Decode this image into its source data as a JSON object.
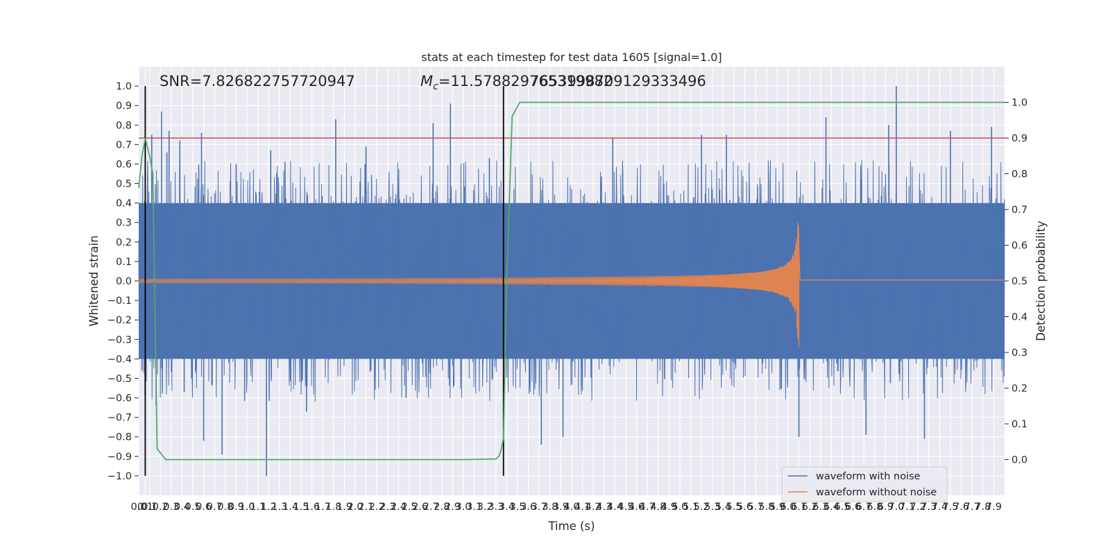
{
  "chart_data": {
    "type": "line",
    "title": "stats at each timestep for test data 1605 [signal=1.0]",
    "xlabel": "Time (s)",
    "ylabel_left": "Whitened strain",
    "ylabel_right": "Detection probability",
    "xlim": [
      0.0,
      8.0
    ],
    "ylim_left": [
      -1.1,
      1.1
    ],
    "ylim_right": [
      -0.1,
      1.1
    ],
    "x_ticks": [
      "0.0",
      "0.1",
      "0.1",
      "0.2",
      "0.3",
      "0.4",
      "0.5",
      "0.6",
      "0.7",
      "0.8",
      "0.9",
      "1.0",
      "1.1",
      "1.2",
      "1.3",
      "1.4",
      "1.5",
      "1.6",
      "1.7",
      "1.8",
      "1.9",
      "2.0",
      "2.1",
      "2.2",
      "2.3",
      "2.4",
      "2.5",
      "2.6",
      "2.7",
      "2.8",
      "2.9",
      "3.0",
      "3.1",
      "3.2",
      "3.3",
      "3.4",
      "3.5",
      "3.6",
      "3.7",
      "3.8",
      "3.9",
      "4.0",
      "4.1",
      "4.2",
      "4.3",
      "4.4",
      "4.5",
      "4.6",
      "4.7",
      "4.8",
      "4.9",
      "5.0",
      "5.1",
      "5.2",
      "5.3",
      "5.4",
      "5.5",
      "5.6",
      "5.7",
      "5.8",
      "5.9",
      "6.0",
      "6.1",
      "6.2",
      "6.3",
      "6.4",
      "6.5",
      "6.6",
      "6.7",
      "6.8",
      "6.9",
      "7.0",
      "7.1",
      "7.2",
      "7.3",
      "7.4",
      "7.5",
      "7.6",
      "7.7",
      "7.8",
      "7.9"
    ],
    "y_ticks_left": [
      "1.0",
      "0.9",
      "0.8",
      "0.7",
      "0.6",
      "0.5",
      "0.4",
      "0.3",
      "0.2",
      "0.1",
      "0.0",
      "−0.1",
      "−0.2",
      "−0.3",
      "−0.4",
      "−0.5",
      "−0.6",
      "−0.7",
      "−0.8",
      "−0.9",
      "−1.0"
    ],
    "y_ticks_right": [
      "1.0",
      "0.9",
      "0.8",
      "0.7",
      "0.6",
      "0.5",
      "0.4",
      "0.3",
      "0.2",
      "0.1",
      "0.0"
    ],
    "annotations": {
      "snr": "SNR=7.826822757720947",
      "mc_symbol": "M",
      "mc_sub": "c",
      "mc_value": "=11.578829765319982",
      "mc_overlap": "7653998709129333496"
    },
    "threshold_probability": 0.9,
    "vertical_markers_x": [
      0.06,
      3.37
    ],
    "grid": true,
    "legend_position": "lower right",
    "series": [
      {
        "name": "waveform with noise",
        "color": "#4c72b0",
        "description_kind": "noisy whitened strain, amplitude mostly within ±0.4 with spikes to ±1.0",
        "band_amplitude": 0.4,
        "spikes": [
          [
            0.03,
            -0.46
          ],
          [
            0.12,
            0.75
          ],
          [
            0.16,
            -0.64
          ],
          [
            0.21,
            0.87
          ],
          [
            0.26,
            0.66
          ],
          [
            0.28,
            0.77
          ],
          [
            0.38,
            0.72
          ],
          [
            0.42,
            -0.57
          ],
          [
            0.58,
            0.76
          ],
          [
            0.6,
            -0.82
          ],
          [
            0.77,
            -0.89
          ],
          [
            0.9,
            0.6
          ],
          [
            1.18,
            -1.0
          ],
          [
            1.22,
            0.67
          ],
          [
            1.55,
            -0.67
          ],
          [
            1.82,
            0.83
          ],
          [
            2.1,
            0.69
          ],
          [
            2.47,
            -0.6
          ],
          [
            2.72,
            0.81
          ],
          [
            2.88,
            0.91
          ],
          [
            3.24,
            0.63
          ],
          [
            3.72,
            -0.84
          ],
          [
            3.92,
            -0.8
          ],
          [
            4.38,
            0.73
          ],
          [
            5.2,
            0.75
          ],
          [
            5.43,
            0.75
          ],
          [
            6.1,
            -0.8
          ],
          [
            6.35,
            0.84
          ],
          [
            6.72,
            -0.79
          ],
          [
            6.93,
            0.8
          ],
          [
            7.0,
            1.0
          ],
          [
            7.26,
            -0.81
          ],
          [
            7.5,
            0.77
          ],
          [
            7.88,
            0.79
          ]
        ]
      },
      {
        "name": "waveform without noise",
        "color": "#dd8452",
        "description_kind": "chirp: small oscillation growing toward merger near t=6.1 s",
        "merger_time": 6.1,
        "peak_positive": 0.25,
        "peak_negative": -0.34,
        "early_amplitude": 0.01
      },
      {
        "name": "detection probability",
        "color": "#55a868",
        "axis": "right",
        "x": [
          0.0,
          0.03,
          0.06,
          0.1,
          0.13,
          0.17,
          0.25,
          0.5,
          1.0,
          2.0,
          3.0,
          3.3,
          3.33,
          3.35,
          3.37,
          3.4,
          3.45,
          3.52,
          3.6,
          4.0,
          5.0,
          6.0,
          7.0,
          8.0
        ],
        "y": [
          0.76,
          0.85,
          0.9,
          0.85,
          0.8,
          0.03,
          0.0,
          0.0,
          0.0,
          0.0,
          0.0,
          0.002,
          0.01,
          0.03,
          0.06,
          0.5,
          0.96,
          1.0,
          1.0,
          1.0,
          1.0,
          1.0,
          1.0,
          1.0
        ]
      }
    ]
  }
}
